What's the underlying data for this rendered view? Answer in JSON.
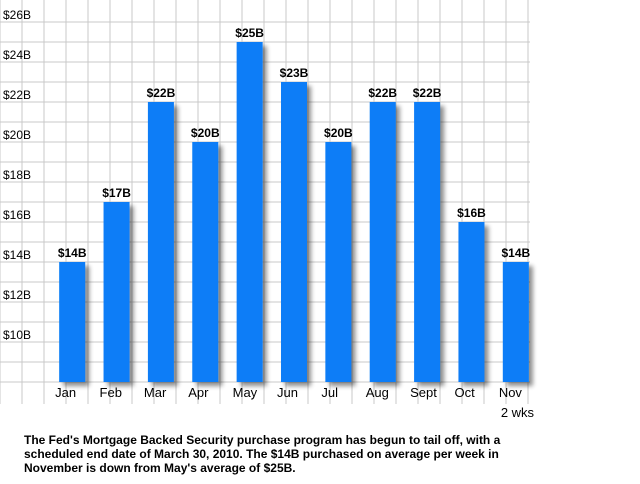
{
  "chart_data": {
    "type": "bar",
    "categories": [
      "Jan",
      "Feb",
      "Mar",
      "Apr",
      "May",
      "Jun",
      "Jul",
      "Aug",
      "Sept",
      "Oct",
      "Nov"
    ],
    "category_sublabels": [
      "",
      "",
      "",
      "",
      "",
      "",
      "",
      "",
      "",
      "",
      "2 wks"
    ],
    "values": [
      14,
      17,
      22,
      20,
      25,
      23,
      20,
      22,
      22,
      16,
      14
    ],
    "data_labels": [
      "$14B",
      "$17B",
      "$22B",
      "$20B",
      "$25B",
      "$23B",
      "$20B",
      "$22B",
      "$22B",
      "$16B",
      "$14B"
    ],
    "y_tick_labels": [
      "$10B",
      "$12B",
      "$14B",
      "$16B",
      "$18B",
      "$20B",
      "$22B",
      "$24B",
      "$26B"
    ],
    "y_tick_values": [
      10,
      12,
      14,
      16,
      18,
      20,
      22,
      24,
      26
    ],
    "ylim": [
      8,
      26
    ],
    "grid": true,
    "bar_color": "#0a7df7",
    "grid_color": "#c8c8c8"
  },
  "caption": "The Fed's Mortgage Backed Security purchase program has begun to tail off, with a scheduled end date of March 30, 2010.  The $14B purchased on average per week in November is down from May's average of $25B."
}
